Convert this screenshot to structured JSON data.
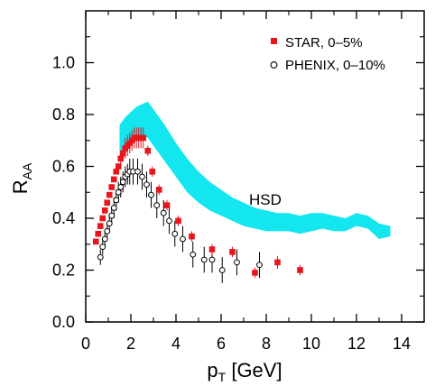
{
  "chart_data": {
    "type": "scatter",
    "xlim": [
      0,
      15
    ],
    "ylim": [
      0,
      1.2
    ],
    "xticks": [
      0,
      2,
      4,
      6,
      8,
      10,
      12,
      14
    ],
    "yticks": [
      0.0,
      0.2,
      0.4,
      0.6,
      0.8,
      1.0
    ],
    "xtick_labels": [
      "0",
      "2",
      "4",
      "6",
      "8",
      "10",
      "12",
      "14"
    ],
    "ytick_labels": [
      "0.0",
      "0.2",
      "0.4",
      "0.6",
      "0.8",
      "1.0"
    ],
    "xlabel_main": "p",
    "xlabel_sub": "T",
    "xlabel_rest": " [GeV]",
    "ylabel_main": "R",
    "ylabel_sub": "AA",
    "legend_position": "top-right",
    "band_label": "HSD",
    "colors": {
      "star": "#e8151b",
      "band": "#14e6f0",
      "phenix_face": "#ffffff",
      "axis": "#000000"
    },
    "series": [
      {
        "name": "STAR, 0–5%",
        "marker": "filled-square",
        "points": [
          [
            0.45,
            0.31,
            0
          ],
          [
            0.55,
            0.34,
            0
          ],
          [
            0.65,
            0.37,
            0
          ],
          [
            0.75,
            0.4,
            0
          ],
          [
            0.85,
            0.43,
            0
          ],
          [
            0.95,
            0.46,
            0
          ],
          [
            1.05,
            0.49,
            0
          ],
          [
            1.15,
            0.52,
            0
          ],
          [
            1.25,
            0.55,
            0
          ],
          [
            1.35,
            0.58,
            0
          ],
          [
            1.45,
            0.6,
            0
          ],
          [
            1.55,
            0.63,
            0.03
          ],
          [
            1.65,
            0.65,
            0.03
          ],
          [
            1.75,
            0.67,
            0.04
          ],
          [
            1.85,
            0.68,
            0.04
          ],
          [
            1.95,
            0.69,
            0.04
          ],
          [
            2.05,
            0.7,
            0.04
          ],
          [
            2.15,
            0.71,
            0.04
          ],
          [
            2.25,
            0.71,
            0.04
          ],
          [
            2.35,
            0.71,
            0.04
          ],
          [
            2.45,
            0.71,
            0.04
          ],
          [
            2.55,
            0.71,
            0.04
          ],
          [
            2.75,
            0.66,
            0.02
          ],
          [
            2.95,
            0.58,
            0.02
          ],
          [
            3.25,
            0.51,
            0.02
          ],
          [
            3.6,
            0.45,
            0.02
          ],
          [
            4.1,
            0.39,
            0.02
          ],
          [
            4.7,
            0.33,
            0.02
          ],
          [
            5.6,
            0.28,
            0.02
          ],
          [
            6.5,
            0.27,
            0.02
          ],
          [
            7.5,
            0.19,
            0.02
          ],
          [
            8.5,
            0.23,
            0.025
          ],
          [
            9.5,
            0.2,
            0.02
          ]
        ]
      },
      {
        "name": "PHENIX, 0–10%",
        "marker": "open-circle",
        "points": [
          [
            0.65,
            0.25,
            0.03
          ],
          [
            0.75,
            0.29,
            0.03
          ],
          [
            0.85,
            0.32,
            0.03
          ],
          [
            0.95,
            0.35,
            0.03
          ],
          [
            1.05,
            0.38,
            0.03
          ],
          [
            1.15,
            0.41,
            0.03
          ],
          [
            1.25,
            0.44,
            0.04
          ],
          [
            1.35,
            0.47,
            0.04
          ],
          [
            1.45,
            0.5,
            0.04
          ],
          [
            1.55,
            0.52,
            0.04
          ],
          [
            1.65,
            0.54,
            0.04
          ],
          [
            1.75,
            0.56,
            0.04
          ],
          [
            1.85,
            0.57,
            0.04
          ],
          [
            1.95,
            0.58,
            0.05
          ],
          [
            2.1,
            0.58,
            0.05
          ],
          [
            2.3,
            0.58,
            0.05
          ],
          [
            2.5,
            0.56,
            0.05
          ],
          [
            2.7,
            0.53,
            0.05
          ],
          [
            2.9,
            0.49,
            0.05
          ],
          [
            3.15,
            0.45,
            0.05
          ],
          [
            3.45,
            0.42,
            0.05
          ],
          [
            3.7,
            0.39,
            0.05
          ],
          [
            3.95,
            0.34,
            0.05
          ],
          [
            4.3,
            0.32,
            0.05
          ],
          [
            4.75,
            0.26,
            0.05
          ],
          [
            5.25,
            0.24,
            0.05
          ],
          [
            5.6,
            0.24,
            0.05
          ],
          [
            6.05,
            0.2,
            0.05
          ],
          [
            6.7,
            0.23,
            0.05
          ],
          [
            7.7,
            0.22,
            0.05
          ]
        ]
      }
    ],
    "band": {
      "x": [
        1.5,
        1.75,
        2.0,
        2.25,
        2.5,
        2.75,
        3.0,
        3.5,
        4.0,
        4.5,
        5.0,
        5.5,
        6.0,
        6.5,
        7.0,
        7.5,
        8.0,
        8.5,
        9.0,
        9.5,
        10.0,
        10.5,
        11.0,
        11.5,
        12.0,
        12.5,
        13.0,
        13.5
      ],
      "upper": [
        0.76,
        0.79,
        0.81,
        0.83,
        0.84,
        0.85,
        0.82,
        0.76,
        0.69,
        0.63,
        0.58,
        0.54,
        0.51,
        0.48,
        0.46,
        0.44,
        0.43,
        0.42,
        0.42,
        0.41,
        0.42,
        0.42,
        0.41,
        0.4,
        0.42,
        0.41,
        0.38,
        0.37
      ],
      "lower": [
        0.62,
        0.65,
        0.68,
        0.7,
        0.72,
        0.71,
        0.68,
        0.62,
        0.56,
        0.5,
        0.46,
        0.43,
        0.41,
        0.39,
        0.37,
        0.36,
        0.35,
        0.35,
        0.35,
        0.34,
        0.35,
        0.36,
        0.35,
        0.35,
        0.37,
        0.36,
        0.32,
        0.33
      ]
    }
  }
}
